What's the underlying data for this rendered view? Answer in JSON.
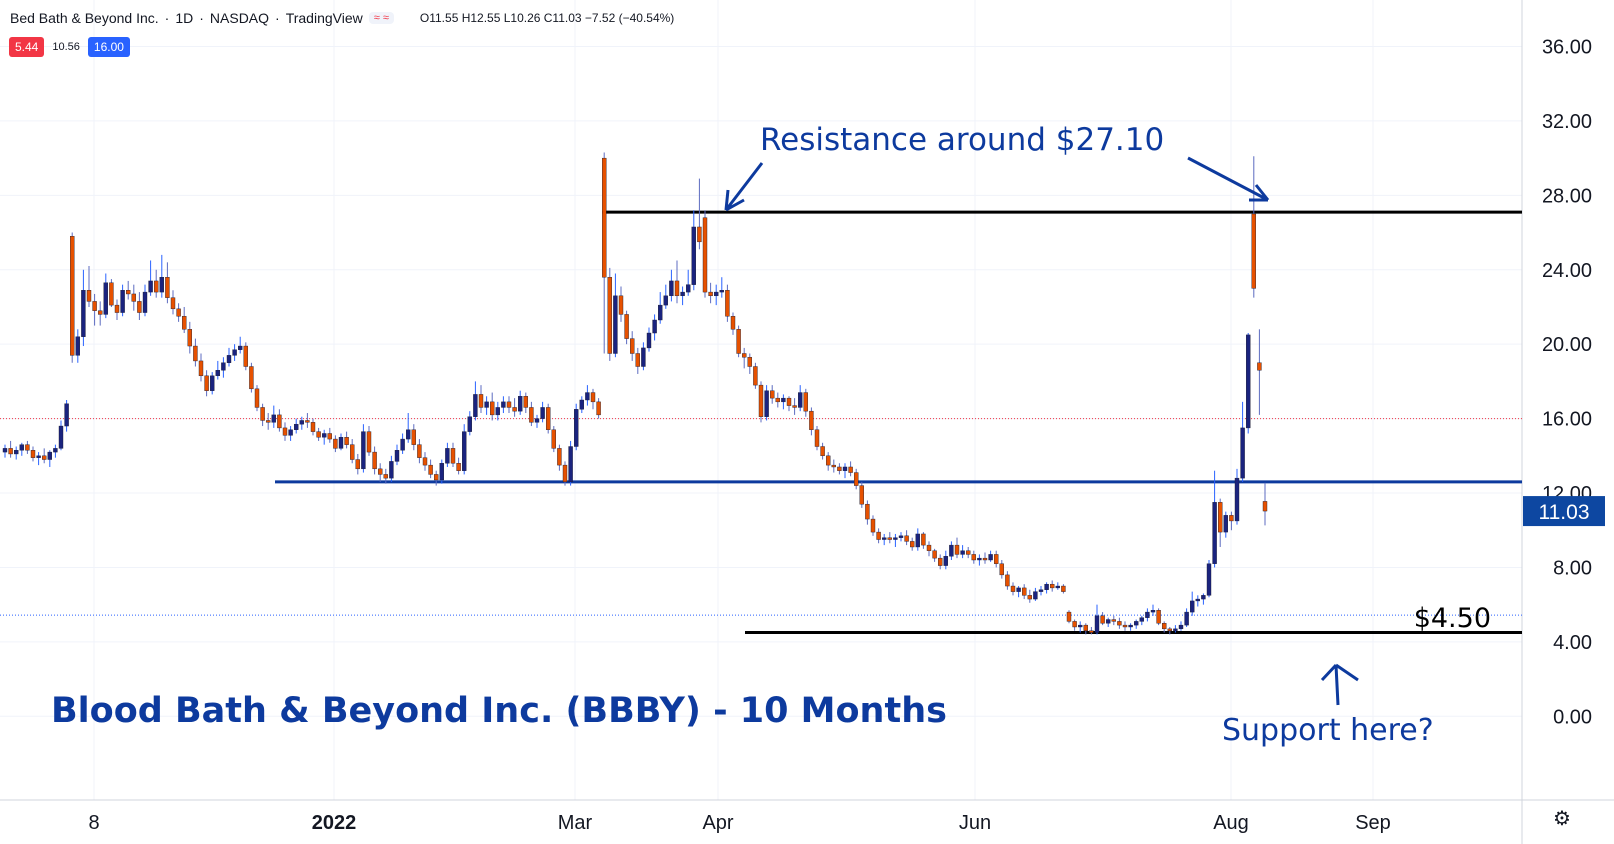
{
  "header": {
    "symbol": "Bed Bath & Beyond Inc.",
    "sep1": "·",
    "interval": "1D",
    "sep2": "·",
    "exchange": "NASDAQ",
    "sep3": "·",
    "source": "TradingView",
    "ohlc": "O11.55 H12.55 L10.26 C11.03 −7.52 (−40.54%)",
    "icons": "≈ ≈"
  },
  "badges": {
    "bid": "5.44",
    "spread": "10.56",
    "ask": "16.00"
  },
  "colors": {
    "up": "#1a237e",
    "down": "#e65100",
    "axis_text": "#131722",
    "annotation": "#0d3a9e",
    "price_label_bg": "#0d47a1"
  },
  "annotations": {
    "title": "Blood Bath & Beyond Inc. (BBBY) - 10 Months",
    "resistance": "Resistance around $27.10",
    "support": "Support here?",
    "support_price": "$4.50"
  },
  "chart_data": {
    "type": "candlestick",
    "title": "",
    "ylim": [
      -4.5,
      38.5
    ],
    "y_ticks": [
      "0.00",
      "4.00",
      "8.00",
      "12.00",
      "16.00",
      "20.00",
      "24.00",
      "28.00",
      "32.00",
      "36.00"
    ],
    "y_tick_values": [
      0,
      4,
      8,
      12,
      16,
      20,
      24,
      28,
      32,
      36
    ],
    "x_ticks": [
      "8",
      "2022",
      "Mar",
      "Apr",
      "Jun",
      "Aug",
      "Sep"
    ],
    "current_price": "11.03",
    "reference_line": 16.0,
    "reference_line_blue": 5.44,
    "resistance_level": 27.1,
    "support_level": 4.5,
    "middle_level": 12.6,
    "candles": [
      [
        14.2,
        14.6,
        13.9,
        14.4
      ],
      [
        14.4,
        14.8,
        13.9,
        14.1
      ],
      [
        14.1,
        14.5,
        13.8,
        14.3
      ],
      [
        14.3,
        14.7,
        14,
        14.6
      ],
      [
        14.6,
        14.8,
        14.1,
        14.3
      ],
      [
        14.3,
        14.5,
        13.7,
        13.9
      ],
      [
        13.9,
        14.2,
        13.5,
        14
      ],
      [
        14,
        14.4,
        13.6,
        13.8
      ],
      [
        13.8,
        14.3,
        13.4,
        14.2
      ],
      [
        14.2,
        14.6,
        13.9,
        14.4
      ],
      [
        14.4,
        15.9,
        14.3,
        15.6
      ],
      [
        15.6,
        17,
        15.3,
        16.8
      ],
      [
        25.8,
        26,
        19,
        19.4
      ],
      [
        19.4,
        20.8,
        19,
        20.4
      ],
      [
        20.4,
        24,
        19.9,
        22.9
      ],
      [
        22.9,
        24.2,
        22,
        22.3
      ],
      [
        22.3,
        22.7,
        21,
        21.8
      ],
      [
        21.8,
        22.3,
        21,
        21.6
      ],
      [
        21.6,
        23.8,
        21.4,
        23.3
      ],
      [
        23.3,
        23.5,
        22,
        22.1
      ],
      [
        22.1,
        22.4,
        21.3,
        21.7
      ],
      [
        21.7,
        23.2,
        21.5,
        22.9
      ],
      [
        22.9,
        23.4,
        22.4,
        22.7
      ],
      [
        22.7,
        23.2,
        21.8,
        22.3
      ],
      [
        22.3,
        22.8,
        21.3,
        21.7
      ],
      [
        21.7,
        23.2,
        21.5,
        22.8
      ],
      [
        22.8,
        24.5,
        22.6,
        23.4
      ],
      [
        23.4,
        24,
        22.5,
        22.8
      ],
      [
        22.8,
        24.8,
        22.5,
        23.6
      ],
      [
        23.6,
        24.4,
        22.2,
        22.5
      ],
      [
        22.5,
        22.9,
        21.6,
        21.9
      ],
      [
        21.9,
        22.2,
        21.2,
        21.5
      ],
      [
        21.5,
        22,
        20.6,
        20.8
      ],
      [
        20.8,
        21.2,
        19.5,
        19.9
      ],
      [
        19.9,
        20.3,
        18.8,
        19.1
      ],
      [
        19.1,
        19.5,
        18,
        18.3
      ],
      [
        18.3,
        18.6,
        17.2,
        17.5
      ],
      [
        17.5,
        18.5,
        17.3,
        18.3
      ],
      [
        18.3,
        19.1,
        18.1,
        18.6
      ],
      [
        18.6,
        19.3,
        18.2,
        19
      ],
      [
        19,
        19.8,
        18.8,
        19.4
      ],
      [
        19.4,
        20,
        19.1,
        19.7
      ],
      [
        19.7,
        20.4,
        19.5,
        19.9
      ],
      [
        19.9,
        20.1,
        18.6,
        18.8
      ],
      [
        18.8,
        19,
        17.4,
        17.6
      ],
      [
        17.6,
        17.8,
        16.4,
        16.6
      ],
      [
        16.6,
        16.8,
        15.6,
        15.9
      ],
      [
        15.9,
        16.3,
        15.4,
        15.8
      ],
      [
        15.8,
        16.7,
        15.5,
        16.2
      ],
      [
        16.2,
        16.5,
        15.3,
        15.5
      ],
      [
        15.5,
        15.8,
        14.8,
        15.1
      ],
      [
        15.1,
        15.6,
        14.8,
        15.4
      ],
      [
        15.4,
        16,
        15.2,
        15.7
      ],
      [
        15.7,
        16.1,
        15.4,
        15.9
      ],
      [
        15.9,
        16.3,
        15.5,
        15.8
      ],
      [
        15.8,
        16,
        15.1,
        15.3
      ],
      [
        15.3,
        15.5,
        14.8,
        15
      ],
      [
        15,
        15.4,
        14.6,
        15.2
      ],
      [
        15.2,
        15.5,
        14.7,
        14.9
      ],
      [
        14.9,
        15.1,
        14.2,
        14.4
      ],
      [
        14.4,
        15.2,
        14.3,
        15
      ],
      [
        15,
        15.3,
        14.4,
        14.6
      ],
      [
        14.6,
        14.9,
        13.6,
        13.8
      ],
      [
        13.8,
        14.1,
        13,
        13.3
      ],
      [
        13.3,
        15.7,
        13.1,
        15.3
      ],
      [
        15.3,
        15.6,
        14,
        14.2
      ],
      [
        14.2,
        14.5,
        13,
        13.3
      ],
      [
        13.3,
        13.6,
        12.6,
        13
      ],
      [
        13,
        13.3,
        12.5,
        12.8
      ],
      [
        12.8,
        14,
        12.6,
        13.7
      ],
      [
        13.7,
        14.6,
        13.5,
        14.3
      ],
      [
        14.3,
        15.2,
        14.1,
        14.9
      ],
      [
        14.9,
        16.3,
        14.7,
        15.4
      ],
      [
        15.4,
        15.7,
        14.3,
        14.6
      ],
      [
        14.6,
        14.9,
        13.6,
        13.9
      ],
      [
        13.9,
        14.2,
        13.2,
        13.5
      ],
      [
        13.5,
        13.8,
        12.8,
        13
      ],
      [
        13,
        13.2,
        12.4,
        12.7
      ],
      [
        12.7,
        13.8,
        12.5,
        13.6
      ],
      [
        13.6,
        14.7,
        13.4,
        14.4
      ],
      [
        14.4,
        14.7,
        13.4,
        13.6
      ],
      [
        13.6,
        13.9,
        13,
        13.2
      ],
      [
        13.2,
        15.7,
        13,
        15.3
      ],
      [
        15.3,
        16.4,
        15.1,
        16.1
      ],
      [
        16.1,
        18,
        15.9,
        17.3
      ],
      [
        17.3,
        17.8,
        16.3,
        16.6
      ],
      [
        16.6,
        17.2,
        16.2,
        16.9
      ],
      [
        16.9,
        17.4,
        15.9,
        16.2
      ],
      [
        16.2,
        16.9,
        15.9,
        16.6
      ],
      [
        16.6,
        17.2,
        16.3,
        16.9
      ],
      [
        16.9,
        17.2,
        16.3,
        16.6
      ],
      [
        16.6,
        17.1,
        16.1,
        16.4
      ],
      [
        16.4,
        17.5,
        16.2,
        17.2
      ],
      [
        17.2,
        17.4,
        16.3,
        16.6
      ],
      [
        16.6,
        16.9,
        15.6,
        15.8
      ],
      [
        15.8,
        16.2,
        15.5,
        16
      ],
      [
        16,
        16.9,
        15.8,
        16.6
      ],
      [
        16.6,
        16.8,
        15.2,
        15.4
      ],
      [
        15.4,
        15.6,
        14.2,
        14.4
      ],
      [
        14.4,
        14.6,
        13.2,
        13.5
      ],
      [
        13.5,
        13.7,
        12.4,
        12.6
      ],
      [
        12.6,
        14.8,
        12.4,
        14.5
      ],
      [
        14.5,
        16.8,
        14.3,
        16.5
      ],
      [
        16.5,
        17.2,
        16.3,
        17
      ],
      [
        17,
        17.8,
        16.7,
        17.4
      ],
      [
        17.4,
        17.6,
        16.5,
        16.9
      ],
      [
        16.9,
        17.1,
        16,
        16.2
      ],
      [
        30,
        30.3,
        19.5,
        23.6
      ],
      [
        23.6,
        24.1,
        19.1,
        19.5
      ],
      [
        19.5,
        23.8,
        19.3,
        22.6
      ],
      [
        22.6,
        23.1,
        21.2,
        21.6
      ],
      [
        21.6,
        21.8,
        20,
        20.3
      ],
      [
        20.3,
        20.7,
        19.1,
        19.5
      ],
      [
        19.5,
        19.8,
        18.4,
        18.8
      ],
      [
        18.8,
        20.1,
        18.6,
        19.8
      ],
      [
        19.8,
        20.9,
        19.6,
        20.6
      ],
      [
        20.6,
        21.6,
        20.2,
        21.3
      ],
      [
        21.3,
        22.8,
        21.1,
        22.1
      ],
      [
        22.1,
        23.2,
        21.9,
        22.6
      ],
      [
        22.6,
        24,
        22.3,
        23.4
      ],
      [
        23.4,
        24.5,
        22.2,
        22.6
      ],
      [
        22.6,
        23.1,
        22.1,
        22.8
      ],
      [
        22.8,
        24,
        22.6,
        23.2
      ],
      [
        23.2,
        27.2,
        22.9,
        26.3
      ],
      [
        26.3,
        28.9,
        25.1,
        25.5
      ],
      [
        26.8,
        27.2,
        22.5,
        22.8
      ],
      [
        22.8,
        23.3,
        22.2,
        22.6
      ],
      [
        22.6,
        23.2,
        22.1,
        22.8
      ],
      [
        22.8,
        23.6,
        22.5,
        22.9
      ],
      [
        22.9,
        23.2,
        21.2,
        21.5
      ],
      [
        21.5,
        21.7,
        20.5,
        20.8
      ],
      [
        20.8,
        21,
        19.3,
        19.5
      ],
      [
        19.5,
        19.8,
        18.7,
        19.3
      ],
      [
        19.3,
        19.5,
        18.4,
        18.8
      ],
      [
        18.8,
        19,
        17.6,
        17.8
      ],
      [
        17.8,
        18,
        15.8,
        16.1
      ],
      [
        16.1,
        17.8,
        15.9,
        17.5
      ],
      [
        17.5,
        17.8,
        16.8,
        17.1
      ],
      [
        17.1,
        17.4,
        16.6,
        16.9
      ],
      [
        16.9,
        17.3,
        16.5,
        17.1
      ],
      [
        17.1,
        17.2,
        16.4,
        16.7
      ],
      [
        16.7,
        17.1,
        16.2,
        16.6
      ],
      [
        16.6,
        17.8,
        16.4,
        17.4
      ],
      [
        17.4,
        17.6,
        16.1,
        16.4
      ],
      [
        16.4,
        16.6,
        15.1,
        15.4
      ],
      [
        15.4,
        15.6,
        14.3,
        14.5
      ],
      [
        14.5,
        14.7,
        13.8,
        14
      ],
      [
        14,
        14.2,
        13.2,
        13.5
      ],
      [
        13.5,
        13.8,
        13.1,
        13.4
      ],
      [
        13.4,
        13.6,
        13,
        13.2
      ],
      [
        13.2,
        13.6,
        12.8,
        13.4
      ],
      [
        13.4,
        13.7,
        12.9,
        13.1
      ],
      [
        13.1,
        13.3,
        12.2,
        12.4
      ],
      [
        12.4,
        12.6,
        11.2,
        11.4
      ],
      [
        11.4,
        11.6,
        10.3,
        10.6
      ],
      [
        10.6,
        10.8,
        9.7,
        9.9
      ],
      [
        9.9,
        10.1,
        9.3,
        9.5
      ],
      [
        9.5,
        9.8,
        9.2,
        9.6
      ],
      [
        9.6,
        9.9,
        9.3,
        9.5
      ],
      [
        9.5,
        9.8,
        9.1,
        9.6
      ],
      [
        9.6,
        9.9,
        9.4,
        9.7
      ],
      [
        9.7,
        10,
        9.2,
        9.4
      ],
      [
        9.4,
        9.6,
        8.9,
        9.1
      ],
      [
        9.1,
        10.1,
        8.9,
        9.8
      ],
      [
        9.8,
        9.9,
        9,
        9.2
      ],
      [
        9.2,
        9.4,
        8.6,
        8.9
      ],
      [
        8.9,
        9,
        8.3,
        8.5
      ],
      [
        8.5,
        8.7,
        7.9,
        8.1
      ],
      [
        8.1,
        8.9,
        7.9,
        8.6
      ],
      [
        8.6,
        9.4,
        8.4,
        9.2
      ],
      [
        9.2,
        9.6,
        8.5,
        8.7
      ],
      [
        8.7,
        9.2,
        8.5,
        8.9
      ],
      [
        8.9,
        9.1,
        8.5,
        8.7
      ],
      [
        8.7,
        8.9,
        8.2,
        8.4
      ],
      [
        8.4,
        8.7,
        8.1,
        8.5
      ],
      [
        8.5,
        8.8,
        8.2,
        8.4
      ],
      [
        8.4,
        8.9,
        8.3,
        8.7
      ],
      [
        8.7,
        8.9,
        8,
        8.2
      ],
      [
        8.2,
        8.4,
        7.4,
        7.6
      ],
      [
        7.6,
        7.8,
        6.8,
        7
      ],
      [
        7,
        7.2,
        6.5,
        6.7
      ],
      [
        6.7,
        7,
        6.4,
        6.9
      ],
      [
        6.9,
        7.1,
        6.3,
        6.5
      ],
      [
        6.5,
        6.8,
        6.1,
        6.3
      ],
      [
        6.3,
        6.9,
        6.2,
        6.7
      ],
      [
        6.7,
        7,
        6.5,
        6.8
      ],
      [
        6.8,
        7.2,
        6.6,
        7.1
      ],
      [
        7.1,
        7.3,
        6.7,
        6.9
      ],
      [
        6.9,
        7.2,
        6.8,
        7
      ],
      [
        7,
        7.1,
        6.6,
        6.7
      ],
      [
        5.6,
        5.7,
        5,
        5.1
      ],
      [
        5.1,
        5.2,
        4.6,
        4.8
      ],
      [
        4.8,
        5.1,
        4.5,
        4.9
      ],
      [
        4.9,
        5,
        4.4,
        4.6
      ],
      [
        4.6,
        4.8,
        4.4,
        4.5
      ],
      [
        4.5,
        6,
        4.4,
        5.4
      ],
      [
        5.4,
        5.6,
        4.9,
        5
      ],
      [
        5,
        5.3,
        4.8,
        5.2
      ],
      [
        5.2,
        5.4,
        4.9,
        5.1
      ],
      [
        5.1,
        5.3,
        4.7,
        4.9
      ],
      [
        4.9,
        5.1,
        4.6,
        4.8
      ],
      [
        4.8,
        5,
        4.6,
        4.9
      ],
      [
        4.9,
        5.2,
        4.7,
        5.1
      ],
      [
        5.1,
        5.4,
        4.9,
        5.3
      ],
      [
        5.3,
        5.8,
        5.1,
        5.6
      ],
      [
        5.6,
        6,
        5.4,
        5.7
      ],
      [
        5.7,
        5.8,
        4.9,
        5
      ],
      [
        5,
        5.1,
        4.5,
        4.7
      ],
      [
        4.7,
        4.8,
        4.4,
        4.6
      ],
      [
        4.6,
        4.9,
        4.5,
        4.7
      ],
      [
        4.7,
        5.1,
        4.6,
        4.9
      ],
      [
        4.9,
        5.8,
        4.8,
        5.6
      ],
      [
        5.6,
        6.7,
        5.4,
        6.2
      ],
      [
        6.2,
        6.5,
        5.9,
        6.3
      ],
      [
        6.3,
        6.6,
        6,
        6.5
      ],
      [
        6.5,
        8.4,
        6.4,
        8.2
      ],
      [
        8.2,
        13.2,
        8,
        11.5
      ],
      [
        11.5,
        11.7,
        9.1,
        9.9
      ],
      [
        9.9,
        11,
        9.6,
        10.8
      ],
      [
        10.8,
        11,
        10,
        10.5
      ],
      [
        10.5,
        13.3,
        10.3,
        12.8
      ],
      [
        12.8,
        16.9,
        12.6,
        15.5
      ],
      [
        15.5,
        20.6,
        15.2,
        20.5
      ],
      [
        27,
        30.1,
        22.5,
        23
      ],
      [
        19,
        20.8,
        16.2,
        18.6
      ],
      [
        11.55,
        12.55,
        10.26,
        11.03
      ]
    ]
  }
}
